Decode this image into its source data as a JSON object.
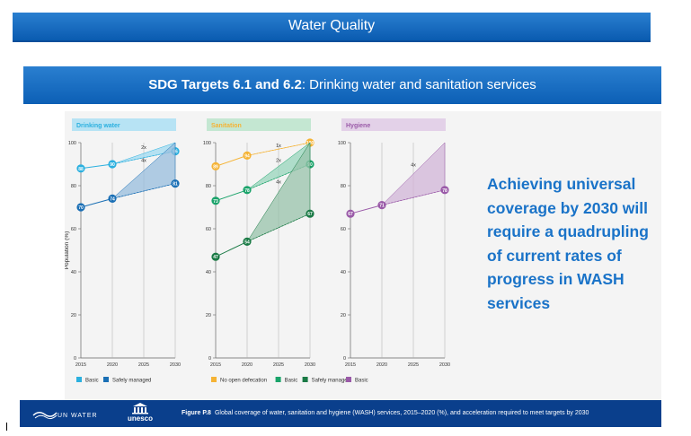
{
  "header": {
    "title": "Water Quality"
  },
  "subtitle": {
    "bold": "SDG Targets 6.1 and 6.2",
    "rest": ": Drinking water and sanitation services"
  },
  "callout": "Achieving universal coverage by 2030 will require a quadrupling of current rates of progress in WASH services",
  "footer": {
    "un_logo": "UN WATER",
    "unesco_logo": "unesco",
    "figure_label": "Figure P.8",
    "caption": "Global coverage of water, sanitation and hygiene (WASH) services, 2015–2020 (%), and acceleration required to meet targets by 2030"
  },
  "colors": {
    "basic_water": "#2bb0df",
    "safely_water": "#1a6fb5",
    "no_open_def": "#f5b335",
    "basic_san": "#1aa36a",
    "safely_san": "#1a7a45",
    "hygiene": "#9a5aa8"
  },
  "chart_data": [
    {
      "type": "line",
      "panel_title": "Drinking water",
      "panel_color": "#b7e3f4",
      "ylabel": "Population (%)",
      "ylim": [
        0,
        100
      ],
      "yticks": [
        0,
        20,
        40,
        60,
        80,
        100
      ],
      "x": [
        2015,
        2020,
        2025,
        2030
      ],
      "series": [
        {
          "name": "Basic",
          "color": "#2bb0df",
          "points": [
            [
              2015,
              88
            ],
            [
              2020,
              90
            ]
          ],
          "projection_2030": 96,
          "target_2030": 100,
          "labels": [
            "88",
            "90",
            "96"
          ]
        },
        {
          "name": "Safely managed",
          "color": "#1a6fb5",
          "points": [
            [
              2015,
              70
            ],
            [
              2020,
              74
            ]
          ],
          "projection_2030": 81,
          "target_2030": 100,
          "labels": [
            "70",
            "74",
            "81"
          ]
        }
      ],
      "annotations": [
        {
          "text": "2x",
          "x": 2025,
          "y": 97
        },
        {
          "text": "4x",
          "x": 2025,
          "y": 91
        }
      ],
      "legend": [
        "Basic",
        "Safely managed"
      ]
    },
    {
      "type": "line",
      "panel_title": "Sanitation",
      "panel_color": "#c4e7d2",
      "ylim": [
        0,
        100
      ],
      "yticks": [
        0,
        20,
        40,
        60,
        80,
        100
      ],
      "x": [
        2015,
        2020,
        2025,
        2030
      ],
      "series": [
        {
          "name": "No open defecation",
          "color": "#f5b335",
          "points": [
            [
              2015,
              89
            ],
            [
              2020,
              94
            ]
          ],
          "projection_2030": 100,
          "target_2030": 100,
          "labels": [
            "89",
            "94",
            "100"
          ]
        },
        {
          "name": "Basic",
          "color": "#1aa36a",
          "points": [
            [
              2015,
              73
            ],
            [
              2020,
              78
            ]
          ],
          "projection_2030": 90,
          "target_2030": 100,
          "labels": [
            "73",
            "78",
            "90"
          ]
        },
        {
          "name": "Safely managed",
          "color": "#1a7a45",
          "points": [
            [
              2015,
              47
            ],
            [
              2020,
              54
            ]
          ],
          "projection_2030": 67,
          "target_2030": 100,
          "labels": [
            "47",
            "54",
            "67"
          ]
        }
      ],
      "annotations": [
        {
          "text": "1x",
          "x": 2025,
          "y": 98
        },
        {
          "text": "2x",
          "x": 2025,
          "y": 91
        },
        {
          "text": "4x",
          "x": 2025,
          "y": 81
        }
      ],
      "legend": [
        "No open defecation",
        "Basic",
        "Safely managed"
      ]
    },
    {
      "type": "line",
      "panel_title": "Hygiene",
      "panel_color": "#e3d1e8",
      "ylim": [
        0,
        100
      ],
      "yticks": [
        0,
        20,
        40,
        60,
        80,
        100
      ],
      "x": [
        2015,
        2020,
        2025,
        2030
      ],
      "series": [
        {
          "name": "Basic",
          "color": "#9a5aa8",
          "points": [
            [
              2015,
              67
            ],
            [
              2020,
              71
            ]
          ],
          "projection_2030": 78,
          "target_2030": 100,
          "labels": [
            "67",
            "71",
            "78"
          ]
        }
      ],
      "annotations": [
        {
          "text": "4x",
          "x": 2025,
          "y": 89
        }
      ],
      "legend": [
        "Basic"
      ]
    }
  ]
}
